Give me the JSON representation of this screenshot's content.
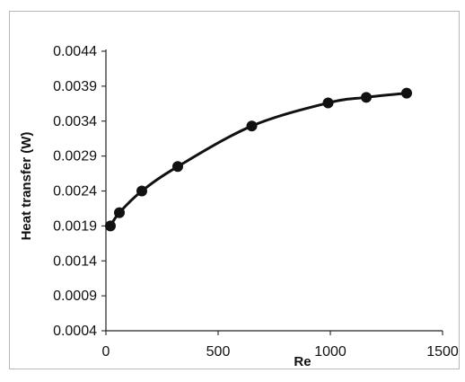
{
  "chart_data": {
    "type": "line",
    "xlabel": "Re",
    "ylabel": "Heat transfer  (W)",
    "xlim": [
      0,
      1500
    ],
    "ylim": [
      0.0004,
      0.0044
    ],
    "x_ticks": [
      0,
      500,
      1000,
      1500
    ],
    "y_ticks": [
      0.0004,
      0.0009,
      0.0014,
      0.0019,
      0.0024,
      0.0029,
      0.0034,
      0.0039,
      0.0044
    ],
    "x_tick_labels": [
      "0",
      "500",
      "1000",
      "1500"
    ],
    "y_tick_labels": [
      "0.0004",
      "0.0009",
      "0.0014",
      "0.0019",
      "0.0024",
      "0.0029",
      "0.0034",
      "0.0039",
      "0.0044"
    ],
    "grid": false,
    "legend": "none",
    "series": [
      {
        "x": [
          20,
          60,
          160,
          320,
          650,
          990,
          1160,
          1340
        ],
        "y": [
          0.0019,
          0.00209,
          0.0024,
          0.00275,
          0.00333,
          0.00366,
          0.00374,
          0.0038
        ],
        "color": "#111111",
        "marker": "circle",
        "smooth": true
      }
    ]
  }
}
